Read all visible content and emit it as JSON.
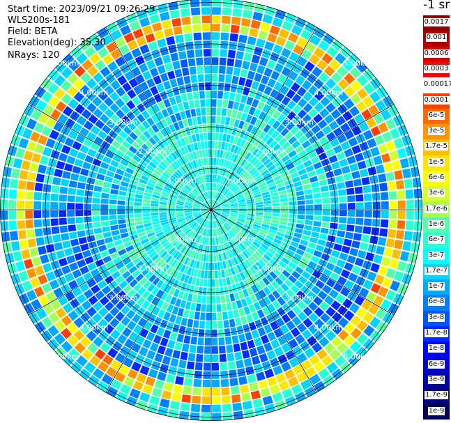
{
  "header": {
    "start_time": "Start time: 2023/09/21 09:26:29",
    "instrument": "WLS200s-181",
    "field": "Field: BETA",
    "elevation": "Elevation(deg): 35.30",
    "nrays": "NRays: 120"
  },
  "chart_data": {
    "type": "heatmap",
    "projection": "polar",
    "unit": "-1 sr",
    "n_rays": 120,
    "range_rings": [
      "1.00km",
      "2.00km",
      "3.00km",
      "4.00km",
      "5.00km"
    ],
    "radial_lines_deg": [
      0,
      30,
      60,
      90,
      120,
      150,
      180,
      210,
      240,
      270,
      300,
      330
    ],
    "colorbar": {
      "labels": [
        "0.0017",
        "0.001",
        "0.0006",
        "0.0003",
        "0.00017",
        "0.0001",
        "6e-5",
        "3e-5",
        "1.7e-5",
        "1e-5",
        "6e-6",
        "3e-6",
        "1.7e-6",
        "1e-6",
        "6e-7",
        "3e-7",
        "1.7e-7",
        "1e-7",
        "6e-8",
        "3e-8",
        "1.7e-8",
        "1e-8",
        "6e-9",
        "3e-9",
        "1.7e-9",
        "1e-9"
      ],
      "colors": [
        "#8b0000",
        "#b20000",
        "#d80000",
        "#ff0000",
        "#ffffff",
        "#ff4000",
        "#ff6a00",
        "#ff9400",
        "#ffbe00",
        "#ffe600",
        "#ffff00",
        "#d4ff2a",
        "#aaff55",
        "#55ffaa",
        "#2affd4",
        "#00ffff",
        "#00d4ff",
        "#00aaff",
        "#0080ff",
        "#0055ff",
        "#002aff",
        "#0000ff",
        "#0000d4",
        "#0000aa",
        "#000080",
        "#000055"
      ]
    }
  }
}
